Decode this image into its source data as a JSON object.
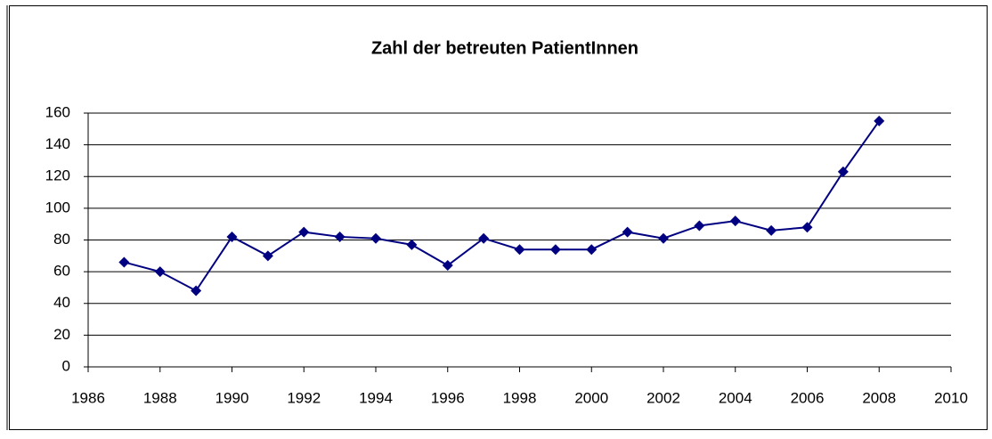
{
  "chart_data": {
    "type": "line",
    "title": "Zahl der betreuten PatientInnen",
    "x": [
      1987,
      1988,
      1989,
      1990,
      1991,
      1992,
      1993,
      1994,
      1995,
      1996,
      1997,
      1998,
      1999,
      2000,
      2001,
      2002,
      2003,
      2004,
      2005,
      2006,
      2007,
      2008
    ],
    "series": [
      {
        "color": "#000080",
        "values": [
          66,
          60,
          48,
          82,
          70,
          85,
          82,
          81,
          77,
          64,
          81,
          74,
          74,
          74,
          85,
          81,
          89,
          92,
          86,
          88,
          123,
          155
        ]
      }
    ],
    "xlim": [
      1986,
      2010
    ],
    "xticks": [
      1986,
      1988,
      1990,
      1992,
      1994,
      1996,
      1998,
      2000,
      2002,
      2004,
      2006,
      2008,
      2010
    ],
    "ylim": [
      0,
      160
    ],
    "yticks": [
      0,
      20,
      40,
      60,
      80,
      100,
      120,
      140,
      160
    ],
    "grid": true
  }
}
